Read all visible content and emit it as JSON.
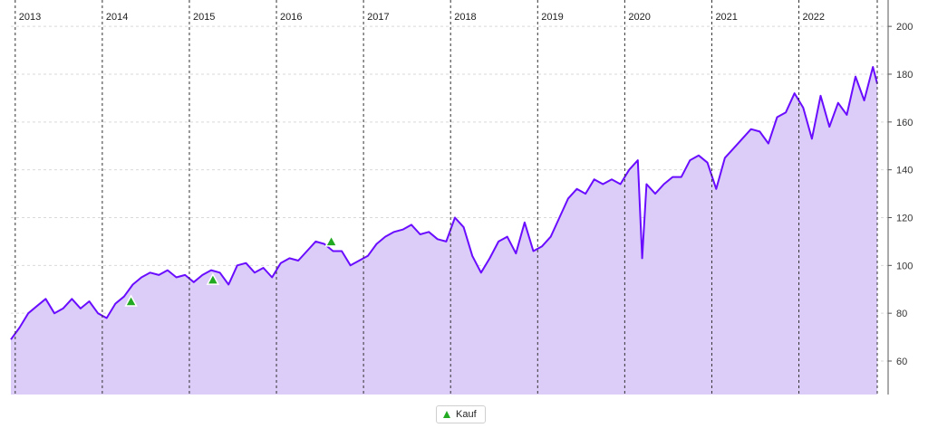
{
  "chart_data": {
    "type": "area",
    "title": "",
    "xlabel": "",
    "ylabel": "",
    "x_range": [
      2012.95,
      2022.9
    ],
    "ylim": [
      46,
      208
    ],
    "y_ticks": [
      60,
      80,
      100,
      120,
      140,
      160,
      180,
      200
    ],
    "year_lines": [
      2013,
      2014,
      2015,
      2016,
      2017,
      2018,
      2019,
      2020,
      2021,
      2022
    ],
    "grid": true,
    "legend_position": "bottom-center",
    "colors": {
      "line": "#6a0dff",
      "fill": "#dcccf8",
      "buy_marker": "#22aa22"
    },
    "series": [
      {
        "x": [
          2012.95,
          2013.05,
          2013.15,
          2013.25,
          2013.35,
          2013.45,
          2013.55,
          2013.65,
          2013.75,
          2013.85,
          2013.95,
          2014.05,
          2014.15,
          2014.25,
          2014.35,
          2014.45,
          2014.55,
          2014.65,
          2014.75,
          2014.85,
          2014.95,
          2015.05,
          2015.15,
          2015.25,
          2015.35,
          2015.45,
          2015.55,
          2015.65,
          2015.75,
          2015.85,
          2015.95,
          2016.05,
          2016.15,
          2016.25,
          2016.35,
          2016.45,
          2016.55,
          2016.65,
          2016.75,
          2016.85,
          2016.95,
          2017.05,
          2017.15,
          2017.25,
          2017.35,
          2017.45,
          2017.55,
          2017.65,
          2017.75,
          2017.85,
          2017.95,
          2018.05,
          2018.15,
          2018.25,
          2018.35,
          2018.45,
          2018.55,
          2018.65,
          2018.75,
          2018.85,
          2018.95,
          2019.05,
          2019.15,
          2019.25,
          2019.35,
          2019.45,
          2019.55,
          2019.65,
          2019.75,
          2019.85,
          2019.95,
          2020.05,
          2020.15,
          2020.2,
          2020.25,
          2020.35,
          2020.45,
          2020.55,
          2020.65,
          2020.75,
          2020.85,
          2020.95,
          2021.05,
          2021.15,
          2021.25,
          2021.35,
          2021.45,
          2021.55,
          2021.65,
          2021.75,
          2021.85,
          2021.95,
          2022.05,
          2022.15,
          2022.25,
          2022.35,
          2022.45,
          2022.55,
          2022.65,
          2022.75,
          2022.85,
          2022.9
        ],
        "values": [
          69,
          74,
          80,
          83,
          86,
          80,
          82,
          86,
          82,
          85,
          80,
          78,
          84,
          87,
          92,
          95,
          97,
          96,
          98,
          95,
          96,
          93,
          96,
          98,
          97,
          92,
          100,
          101,
          97,
          99,
          95,
          101,
          103,
          102,
          106,
          110,
          109,
          106,
          106,
          100,
          102,
          104,
          109,
          112,
          114,
          115,
          117,
          113,
          114,
          111,
          110,
          120,
          116,
          104,
          97,
          103,
          110,
          112,
          105,
          118,
          106,
          108,
          112,
          120,
          128,
          132,
          130,
          136,
          134,
          136,
          134,
          140,
          144,
          103,
          134,
          130,
          134,
          137,
          137,
          144,
          146,
          143,
          132,
          145,
          149,
          153,
          157,
          156,
          151,
          162,
          164,
          172,
          166,
          153,
          171,
          158,
          168,
          163,
          179,
          169,
          183,
          176
        ]
      }
    ],
    "buy_markers": [
      {
        "x": 2014.33,
        "y": 85
      },
      {
        "x": 2015.27,
        "y": 94
      },
      {
        "x": 2016.63,
        "y": 110
      }
    ],
    "year_labels": [
      "2013",
      "2014",
      "2015",
      "2016",
      "2017",
      "2018",
      "2019",
      "2020",
      "2021",
      "2022"
    ],
    "y_tick_labels": [
      "60",
      "80",
      "100",
      "120",
      "140",
      "160",
      "180",
      "200"
    ]
  },
  "legend": {
    "buy_label": "Kauf"
  }
}
